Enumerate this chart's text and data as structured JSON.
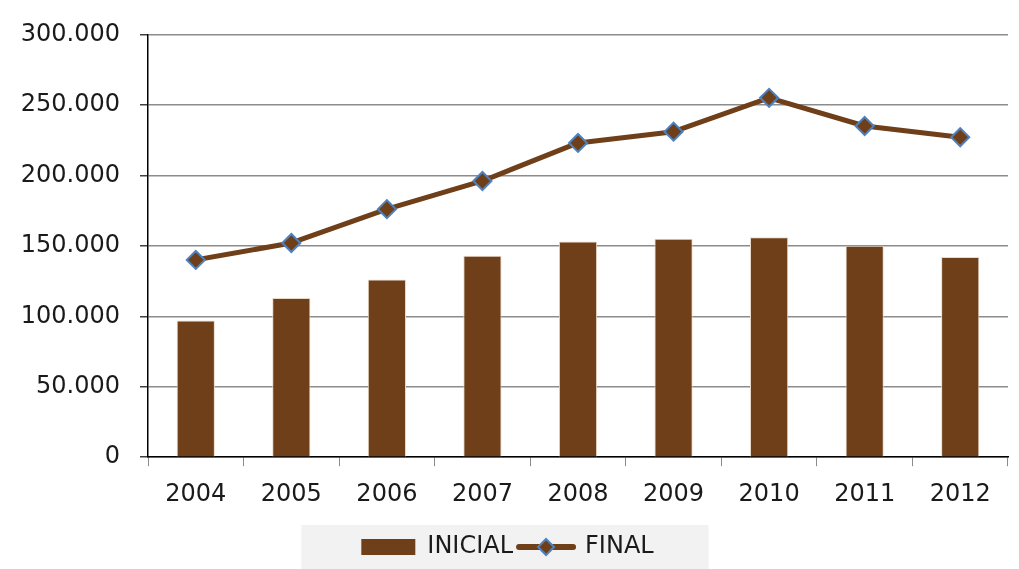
{
  "chart_data": {
    "type": "bar",
    "categories": [
      "2004",
      "2005",
      "2006",
      "2007",
      "2008",
      "2009",
      "2010",
      "2011",
      "2012"
    ],
    "series": [
      {
        "name": "INICIAL",
        "color": "#6e3f19",
        "values": [
          97000,
          113000,
          126000,
          143000,
          153000,
          155000,
          156000,
          150000,
          142000
        ]
      },
      {
        "name": "FINAL",
        "type": "line",
        "color": "#6e3f19",
        "values": [
          140000,
          152000,
          176000,
          196000,
          223000,
          231000,
          255000,
          235000,
          227000
        ]
      }
    ],
    "ylim": [
      0,
      300000
    ],
    "yticks": [
      0,
      {
        "value": 50000,
        "label": "50.000"
      },
      {
        "value": 100000,
        "label": "100.000"
      },
      {
        "value": 150000,
        "label": "150.000"
      },
      {
        "value": 200000,
        "label": "200.000"
      },
      {
        "value": 250000,
        "label": "250.000"
      },
      {
        "value": 300000,
        "label": "300.000"
      }
    ],
    "grid": "y",
    "legend": "bottom",
    "marker": "diamond"
  }
}
